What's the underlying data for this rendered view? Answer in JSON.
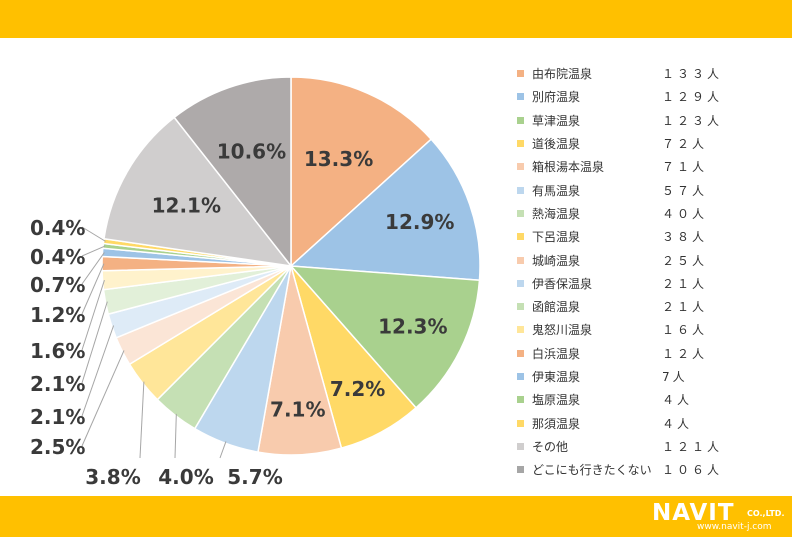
{
  "colors": {
    "banner": "#FFC000",
    "leader": "#a6a6a6"
  },
  "chart_data": {
    "type": "pie",
    "categories": [
      "由布院温泉",
      "別府温泉",
      "草津温泉",
      "道後温泉",
      "箱根湯本温泉",
      "有馬温泉",
      "熱海温泉",
      "下呂温泉",
      "城崎温泉",
      "伊香保温泉",
      "函館温泉",
      "鬼怒川温泉",
      "白浜温泉",
      "伊東温泉",
      "塩原温泉",
      "那須温泉",
      "その他",
      "どこにも行きたくない"
    ],
    "values": [
      133,
      129,
      123,
      72,
      71,
      57,
      40,
      38,
      25,
      21,
      21,
      16,
      12,
      7,
      4,
      4,
      121,
      106
    ],
    "percent_labels": [
      "13.3%",
      "12.9%",
      "12.3%",
      "7.2%",
      "7.1%",
      "5.7%",
      "4.0%",
      "3.8%",
      "2.5%",
      "2.1%",
      "2.1%",
      "1.6%",
      "1.2%",
      "0.7%",
      "0.4%",
      "0.4%",
      "12.1%",
      "10.6%"
    ],
    "count_labels": [
      "１３３人",
      "１２９人",
      "１２３人",
      "７２人",
      "７１人",
      "５７人",
      "４０人",
      "３８人",
      "２５人",
      "２１人",
      "２１人",
      "１６人",
      "１２人",
      "7人",
      "４人",
      "４人",
      "１２１人",
      "１０６人"
    ],
    "colors": [
      "#F4B183",
      "#9DC3E6",
      "#A9D18E",
      "#FFD966",
      "#F8CBAD",
      "#BDD7EE",
      "#C5E0B4",
      "#FFE699",
      "#FBE5D6",
      "#DEEBF7",
      "#E2F0D9",
      "#FFF2CC",
      "#F4B183",
      "#9DC3E6",
      "#A9D18E",
      "#FFD966",
      "#D0CECE",
      "#AEAAAA"
    ],
    "legend_colors": [
      "#F4B183",
      "#9DC3E6",
      "#A9D18E",
      "#FFD966",
      "#F8CBAD",
      "#BDD7EE",
      "#C5E0B4",
      "#FFD966",
      "#F8CBAD",
      "#BDD7EE",
      "#C5E0B4",
      "#FFE699",
      "#F4B183",
      "#9DC3E6",
      "#A9D18E",
      "#FFD966",
      "#D0CECE",
      "#A6A6A6"
    ],
    "legend_position": "right",
    "start": "top, clockwise"
  },
  "logo": {
    "main": "NAVIT",
    "suffix": "CO.,LTD.",
    "url": "www.navit-j.com"
  }
}
